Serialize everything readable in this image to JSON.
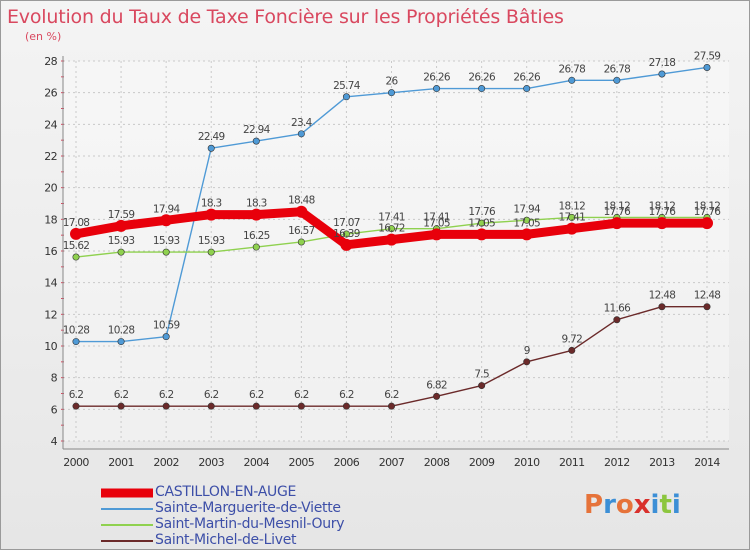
{
  "header": {
    "title": "Evolution du Taux de Taxe Foncière sur les Propriétés Bâties",
    "subtitle": "(en %)"
  },
  "logo": {
    "text": "Proxiti",
    "colors": [
      "#e6733a",
      "#3c8fd6",
      "#e6733a",
      "#d9302c",
      "#3c8fd6",
      "#8cc63f",
      "#3c8fd6"
    ]
  },
  "chart_data": {
    "type": "line",
    "title": "Evolution du Taux de Taxe Foncière sur les Propriétés Bâties",
    "ylabel": "(en %)",
    "xlabel": "",
    "categories": [
      "2000",
      "2001",
      "2002",
      "2003",
      "2004",
      "2005",
      "2006",
      "2007",
      "2008",
      "2009",
      "2010",
      "2011",
      "2012",
      "2013",
      "2014"
    ],
    "ylim": [
      4,
      28
    ],
    "yticks": [
      4,
      6,
      8,
      10,
      12,
      14,
      16,
      18,
      20,
      22,
      24,
      26,
      28
    ],
    "grid": true,
    "legend_position": "bottom-left",
    "series": [
      {
        "name": "CASTILLON-EN-AUGE",
        "color": "#e8000b",
        "thick": true,
        "values": [
          17.08,
          17.59,
          17.94,
          18.3,
          18.3,
          18.48,
          16.39,
          16.72,
          17.05,
          17.05,
          17.05,
          17.41,
          17.76,
          17.76,
          17.76
        ],
        "labels": [
          "17.08",
          "17.59",
          "17.94",
          "18.3",
          "18.3",
          "18.48",
          "16.39",
          "16.72",
          "17.05",
          "17.05",
          "17.05",
          "17.41",
          "17.76",
          "17.76",
          "17.76"
        ]
      },
      {
        "name": "Sainte-Marguerite-de-Viette",
        "color": "#4f9ad6",
        "thick": false,
        "values": [
          10.28,
          10.28,
          10.59,
          22.49,
          22.94,
          23.4,
          25.74,
          26,
          26.26,
          26.26,
          26.26,
          26.78,
          26.78,
          27.18,
          27.59
        ],
        "labels": [
          "10.28",
          "10.28",
          "10.59",
          "22.49",
          "22.94",
          "23.4",
          "25.74",
          "26",
          "26.26",
          "26.26",
          "26.26",
          "26.78",
          "26.78",
          "27.18",
          "27.59"
        ]
      },
      {
        "name": "Saint-Martin-du-Mesnil-Oury",
        "color": "#8fd14f",
        "thick": false,
        "values": [
          15.62,
          15.93,
          15.93,
          15.93,
          16.25,
          16.57,
          17.07,
          17.41,
          17.41,
          17.76,
          17.94,
          18.12,
          18.12,
          18.12,
          18.12
        ],
        "labels": [
          "15.62",
          "15.93",
          "15.93",
          "15.93",
          "16.25",
          "16.57",
          "17.07",
          "17.41",
          "17.41",
          "17.76",
          "17.94",
          "18.12",
          "18.12",
          "18.12",
          "18.12"
        ]
      },
      {
        "name": "Saint-Michel-de-Livet",
        "color": "#6b2a2a",
        "thick": false,
        "values": [
          6.2,
          6.2,
          6.2,
          6.2,
          6.2,
          6.2,
          6.2,
          6.2,
          6.82,
          7.5,
          9,
          9.72,
          11.66,
          12.48,
          12.48
        ],
        "labels": [
          "6.2",
          "6.2",
          "6.2",
          "6.2",
          "6.2",
          "6.2",
          "6.2",
          "6.2",
          "6.82",
          "7.5",
          "9",
          "9.72",
          "11.66",
          "12.48",
          "12.48"
        ]
      }
    ]
  }
}
